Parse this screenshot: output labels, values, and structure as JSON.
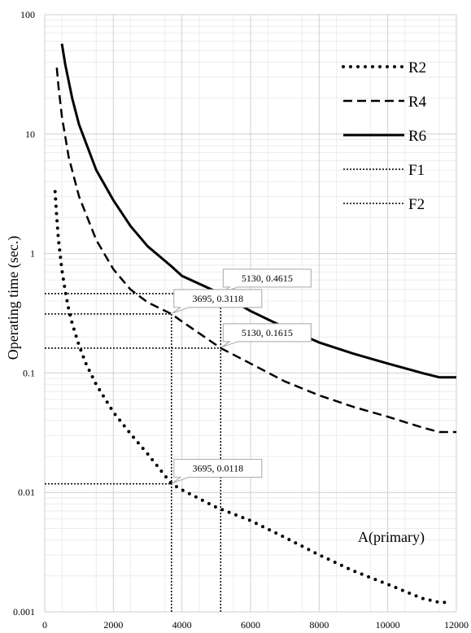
{
  "chart_data": {
    "type": "line",
    "ylabel": "Operating time (sec.)",
    "xlabel": "A(primary)",
    "xlim": [
      0,
      12000
    ],
    "ylim": [
      0.001,
      100
    ],
    "y_scale": "log",
    "x_ticks": [
      "0",
      "2000",
      "4000",
      "6000",
      "8000",
      "10000",
      "12000"
    ],
    "y_ticks": [
      "100",
      "10",
      "1",
      "0.1",
      "0.01",
      "0.001"
    ],
    "grid": true,
    "legend_position": "top-right",
    "series": [
      {
        "name": "R2",
        "style": "dotted",
        "x": [
          300,
          350,
          400,
          500,
          600,
          700,
          800,
          1000,
          1200,
          1500,
          2000,
          2500,
          3000,
          3695,
          4000,
          5000,
          6000,
          7000,
          8000,
          9000,
          10000,
          11000,
          11500,
          11800
        ],
        "y": [
          3.3,
          2.0,
          1.3,
          0.73,
          0.48,
          0.34,
          0.26,
          0.17,
          0.12,
          0.08,
          0.047,
          0.031,
          0.021,
          0.0118,
          0.0105,
          0.0075,
          0.0058,
          0.0042,
          0.003,
          0.0022,
          0.0017,
          0.0013,
          0.0012,
          0.0012
        ]
      },
      {
        "name": "R4",
        "style": "dashed",
        "x": [
          350,
          400,
          500,
          700,
          1000,
          1500,
          2000,
          2500,
          3000,
          3695,
          4000,
          5130,
          6000,
          7000,
          8000,
          9000,
          10000,
          11000,
          11500,
          12000
        ],
        "y": [
          36,
          25,
          14,
          6.4,
          3.0,
          1.3,
          0.74,
          0.5,
          0.39,
          0.3118,
          0.27,
          0.1615,
          0.12,
          0.085,
          0.065,
          0.052,
          0.043,
          0.035,
          0.032,
          0.032
        ]
      },
      {
        "name": "R6",
        "style": "solid",
        "x": [
          500,
          600,
          800,
          1000,
          1500,
          2000,
          2500,
          3000,
          3695,
          4000,
          5130,
          6000,
          7000,
          8000,
          9000,
          10000,
          11000,
          11500,
          12000
        ],
        "y": [
          57,
          38,
          20,
          12,
          5.0,
          2.8,
          1.7,
          1.15,
          0.78,
          0.65,
          0.4615,
          0.33,
          0.24,
          0.18,
          0.145,
          0.12,
          0.1,
          0.092,
          0.092
        ]
      },
      {
        "name": "F1",
        "style": "fine-dotted",
        "x": [
          3695,
          3695
        ],
        "y": [
          0.001,
          0.3118
        ]
      },
      {
        "name": "F2",
        "style": "fine-dotted",
        "x": [
          5130,
          5130
        ],
        "y": [
          0.001,
          0.4615
        ]
      }
    ],
    "reference_lines": [
      {
        "y": 0.4615,
        "x_end": 5130
      },
      {
        "y": 0.3118,
        "x_end": 3695
      },
      {
        "y": 0.1615,
        "x_end": 5130
      },
      {
        "y": 0.0118,
        "x_end": 3695
      }
    ],
    "annotations": [
      {
        "text": "5130, 0.4615",
        "x": 5130,
        "y": 0.4615
      },
      {
        "text": "3695, 0.3118",
        "x": 3695,
        "y": 0.3118
      },
      {
        "text": "5130, 0.1615",
        "x": 5130,
        "y": 0.1615
      },
      {
        "text": "3695, 0.0118",
        "x": 3695,
        "y": 0.0118
      }
    ]
  }
}
